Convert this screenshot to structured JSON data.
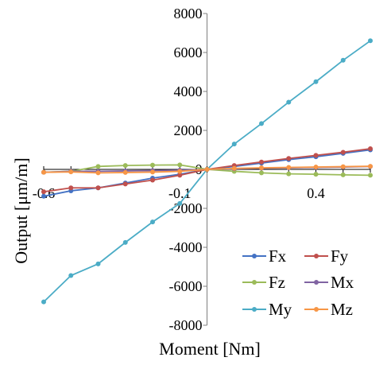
{
  "chart_data": {
    "type": "line",
    "title": "",
    "xlabel": "Moment [Nm]",
    "ylabel": "Output [μm/m]",
    "x": [
      -0.6,
      -0.5,
      -0.4,
      -0.3,
      -0.2,
      -0.1,
      0,
      0.1,
      0.2,
      0.3,
      0.4,
      0.5,
      0.6
    ],
    "xlim": [
      -0.6,
      0.6
    ],
    "ylim": [
      -8000,
      8000
    ],
    "yticks": [
      -8000,
      -6000,
      -4000,
      -2000,
      0,
      2000,
      4000,
      6000,
      8000
    ],
    "ytick_labels": [
      "-8000",
      "-6000",
      "-4000",
      "-2000",
      "0",
      "2000",
      "4000",
      "6000",
      "8000"
    ],
    "xtick_labels": [
      {
        "value": -0.6,
        "label": "-0.6"
      },
      {
        "value": -0.1,
        "label": "-0.1"
      },
      {
        "value": 0.4,
        "label": "0.4"
      }
    ],
    "grid": false,
    "legend": {
      "position": "bottom-right",
      "columns": 2
    },
    "series": [
      {
        "name": "Fx",
        "color": "#4472C4",
        "values": [
          -1380,
          -1100,
          -950,
          -700,
          -450,
          -250,
          0,
          150,
          320,
          500,
          650,
          820,
          1000
        ]
      },
      {
        "name": "Fy",
        "color": "#C0504D",
        "values": [
          -1150,
          -950,
          -950,
          -750,
          -550,
          -300,
          0,
          200,
          380,
          560,
          720,
          880,
          1060
        ]
      },
      {
        "name": "Fz",
        "color": "#9BBB59",
        "values": [
          -150,
          -100,
          150,
          200,
          220,
          230,
          0,
          -100,
          -180,
          -230,
          -250,
          -280,
          -300
        ]
      },
      {
        "name": "Mx",
        "color": "#8064A2",
        "values": [
          -150,
          -100,
          -100,
          -80,
          -60,
          -40,
          0,
          30,
          60,
          80,
          100,
          120,
          150
        ]
      },
      {
        "name": "My",
        "color": "#4BACC6",
        "values": [
          -6800,
          -5450,
          -4850,
          -3750,
          -2700,
          -1750,
          0,
          1300,
          2350,
          3450,
          4500,
          5600,
          6600
        ]
      },
      {
        "name": "Mz",
        "color": "#F79646",
        "values": [
          -150,
          -130,
          -180,
          -160,
          -140,
          -100,
          0,
          50,
          80,
          100,
          120,
          140,
          160
        ]
      }
    ]
  }
}
